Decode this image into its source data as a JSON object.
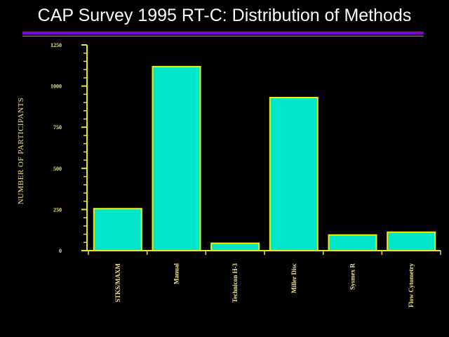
{
  "page": {
    "title": "CAP Survey 1995 RT-C:  Distribution of Methods"
  },
  "colors": {
    "background": "#000000",
    "title": "#ffffff",
    "rule_purple": "#8a00d6",
    "rule_grey": "#8a8aa0",
    "axis": "#e6e632",
    "bar_fill": "#00e6c8",
    "bar_stroke": "#f0f000",
    "text": "#f0e68c"
  },
  "chart_data": {
    "type": "bar",
    "title": "",
    "categories": [
      "STKS/MAXM",
      "Manual",
      "Technicon H-3",
      "Miller Disc",
      "Sysmex R",
      "Flow Cytometry"
    ],
    "values": [
      255,
      1118,
      45,
      930,
      95,
      112
    ],
    "xlabel": "",
    "ylabel": "NUMBER OF PARTICIPANTS",
    "ylim": [
      0,
      1250
    ],
    "yticks": [
      0,
      250,
      500,
      750,
      1000,
      1250
    ],
    "grid": false,
    "legend": "none"
  }
}
